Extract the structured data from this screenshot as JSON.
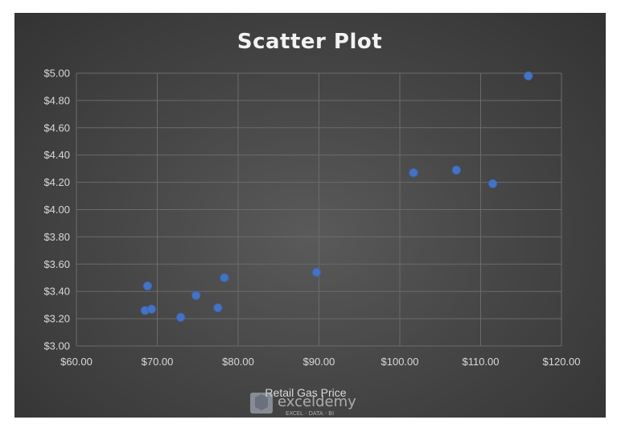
{
  "colors": {
    "background_center": "#5a5a5a",
    "background_edge": "#333333",
    "point_fill": "#4472c4",
    "gridline": "#6b6b6b",
    "text": "#d9d9d9",
    "title": "#f2f2f2"
  },
  "watermark": {
    "brand": "exceldemy",
    "tagline": "EXCEL · DATA · BI",
    "icon": "exceldemy-logo-icon"
  },
  "chart_data": {
    "type": "scatter",
    "title": "Scatter Plot",
    "xlabel": "Retail Gas Price",
    "ylabel": "",
    "xlim": [
      60,
      120
    ],
    "ylim": [
      3.0,
      5.0
    ],
    "x_ticks": [
      60,
      70,
      80,
      90,
      100,
      110,
      120
    ],
    "y_ticks": [
      3.0,
      3.2,
      3.4,
      3.6,
      3.8,
      4.0,
      4.2,
      4.4,
      4.6,
      4.8,
      5.0
    ],
    "x_tick_labels": [
      "$60.00",
      "$70.00",
      "$80.00",
      "$90.00",
      "$100.00",
      "$110.00",
      "$120.00"
    ],
    "y_tick_labels": [
      "$3.00",
      "$3.20",
      "$3.40",
      "$3.60",
      "$3.80",
      "$4.00",
      "$4.20",
      "$4.40",
      "$4.60",
      "$4.80",
      "$5.00"
    ],
    "grid": true,
    "legend": "none",
    "series": [
      {
        "points": [
          {
            "x": 68.5,
            "y": 3.26
          },
          {
            "x": 68.8,
            "y": 3.44
          },
          {
            "x": 69.3,
            "y": 3.27
          },
          {
            "x": 72.9,
            "y": 3.21
          },
          {
            "x": 74.8,
            "y": 3.37
          },
          {
            "x": 77.5,
            "y": 3.28
          },
          {
            "x": 78.3,
            "y": 3.5
          },
          {
            "x": 89.7,
            "y": 3.54
          },
          {
            "x": 101.7,
            "y": 4.27
          },
          {
            "x": 107.0,
            "y": 4.29
          },
          {
            "x": 111.5,
            "y": 4.19
          },
          {
            "x": 115.9,
            "y": 4.98
          }
        ]
      }
    ]
  }
}
